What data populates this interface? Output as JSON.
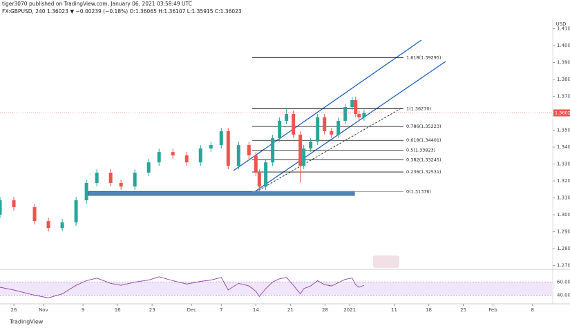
{
  "header": {
    "publisher": "tiger3070 published on TradingView.com, January 06, 2021 03:58:49 UTC",
    "symbol_line": "FX:GBPUSD, 240  1.36023 ▼ −0.00239 (−0.18%)  O:1.36065  H:1.36107  L:1.35915  C:1.36023"
  },
  "footer": {
    "brand": "TradingView"
  },
  "chart_data": {
    "type": "candlestick",
    "currency": "USD",
    "last_price_label": "1.36023",
    "last_price": 1.36023,
    "up_color": "#26a69a",
    "down_color": "#ef5350",
    "x": [
      -2.8,
      0,
      4.2,
      7,
      9.8,
      12.6,
      14.7,
      16.8,
      19.6,
      21.7,
      24.5,
      27.3,
      29.4,
      32.2,
      35,
      37.8,
      39.9,
      42,
      43.4,
      45.5,
      47.6,
      49,
      49.7,
      51,
      52.4,
      53.8,
      55.2,
      56.6,
      58,
      58.7,
      60.1,
      61.5,
      62.9,
      64.3,
      65.7,
      67.1,
      68.5,
      69.2,
      69.9,
      70.9
    ],
    "open": [
      1.3,
      1.3086,
      1.3045,
      1.2963,
      1.2922,
      1.2955,
      1.3086,
      1.3188,
      1.3249,
      1.3188,
      1.3167,
      1.3249,
      1.331,
      1.3371,
      1.3351,
      1.331,
      1.3392,
      1.3412,
      1.3494,
      1.329,
      1.3412,
      1.3351,
      1.3249,
      1.3167,
      1.331,
      1.3453,
      1.3555,
      1.3596,
      1.3474,
      1.329,
      1.3392,
      1.3433,
      1.3576,
      1.3494,
      1.3474,
      1.3555,
      1.3637,
      1.3678,
      1.3596,
      1.3576
    ],
    "high": [
      1.3106,
      1.3106,
      1.3065,
      1.2983,
      1.2975,
      1.3106,
      1.3208,
      1.3269,
      1.3269,
      1.3208,
      1.3269,
      1.333,
      1.3391,
      1.3391,
      1.3371,
      1.3412,
      1.3432,
      1.3514,
      1.3514,
      1.3432,
      1.3432,
      1.3371,
      1.3269,
      1.333,
      1.3473,
      1.3575,
      1.3627,
      1.3616,
      1.3494,
      1.3412,
      1.3453,
      1.3596,
      1.3596,
      1.3514,
      1.3575,
      1.3657,
      1.3698,
      1.3698,
      1.3616,
      1.3622
    ],
    "low": [
      1.298,
      1.3025,
      1.2943,
      1.2902,
      1.2902,
      1.2935,
      1.3066,
      1.3168,
      1.3168,
      1.3147,
      1.3147,
      1.3229,
      1.329,
      1.3331,
      1.329,
      1.329,
      1.3372,
      1.3392,
      1.327,
      1.327,
      1.3331,
      1.3229,
      1.3137,
      1.3147,
      1.329,
      1.3433,
      1.3535,
      1.3454,
      1.319,
      1.327,
      1.3372,
      1.3413,
      1.3474,
      1.3454,
      1.3454,
      1.3535,
      1.3617,
      1.3576,
      1.3556,
      1.3556
    ],
    "close": [
      1.3086,
      1.3045,
      1.2963,
      1.2922,
      1.2955,
      1.3086,
      1.3188,
      1.3249,
      1.3188,
      1.3167,
      1.3249,
      1.331,
      1.3371,
      1.3351,
      1.331,
      1.3392,
      1.3412,
      1.3494,
      1.329,
      1.3412,
      1.3351,
      1.3249,
      1.3167,
      1.331,
      1.3453,
      1.3555,
      1.3596,
      1.3474,
      1.329,
      1.3392,
      1.3433,
      1.3576,
      1.3494,
      1.3474,
      1.3555,
      1.3637,
      1.3678,
      1.3596,
      1.3576,
      1.3602
    ],
    "xlim": [
      -2.8,
      109.1
    ],
    "xticks": [
      {
        "value": 0,
        "label": "26"
      },
      {
        "value": 6,
        "label": "Nov"
      },
      {
        "value": 14,
        "label": "9"
      },
      {
        "value": 21,
        "label": "16"
      },
      {
        "value": 28,
        "label": "23"
      },
      {
        "value": 36,
        "label": "Dec"
      },
      {
        "value": 42,
        "label": "7"
      },
      {
        "value": 49,
        "label": "14"
      },
      {
        "value": 56,
        "label": "21"
      },
      {
        "value": 63,
        "label": "28"
      },
      {
        "value": 68,
        "label": "2021"
      },
      {
        "value": 77,
        "label": "11"
      },
      {
        "value": 84,
        "label": "18"
      },
      {
        "value": 91,
        "label": "25"
      },
      {
        "value": 97,
        "label": "Feb"
      },
      {
        "value": 105,
        "label": "8"
      }
    ],
    "ylim": [
      1.2678,
      1.4147
    ],
    "yticks": [
      {
        "value": 1.41,
        "label": "1.41000"
      },
      {
        "value": 1.4,
        "label": "1.40000"
      },
      {
        "value": 1.39,
        "label": "1.39000"
      },
      {
        "value": 1.38,
        "label": "1.38000"
      },
      {
        "value": 1.37,
        "label": "1.37000"
      },
      {
        "value": 1.35,
        "label": "1.35000"
      },
      {
        "value": 1.34,
        "label": "1.34000"
      },
      {
        "value": 1.33,
        "label": "1.33000"
      },
      {
        "value": 1.32,
        "label": "1.32000"
      },
      {
        "value": 1.31,
        "label": "1.31000"
      },
      {
        "value": 1.3,
        "label": "1.30000"
      },
      {
        "value": 1.29,
        "label": "1.29000"
      },
      {
        "value": 1.28,
        "label": "1.28000"
      },
      {
        "value": 1.27,
        "label": "1.27000"
      }
    ],
    "fib_levels": [
      {
        "label": "1.618(1.39295)",
        "price": 1.39295
      },
      {
        "label": "1(1.36270)",
        "price": 1.3627
      },
      {
        "label": "0.786(1.35223)",
        "price": 1.35223
      },
      {
        "label": "0.618(1.34401)",
        "price": 1.34401
      },
      {
        "label": "0.5(1.33823)",
        "price": 1.33823
      },
      {
        "label": "0.382(1.33245)",
        "price": 1.33245
      },
      {
        "label": "0.236(1.32531)",
        "price": 1.32531
      },
      {
        "label": "0(1.31376)",
        "price": 1.31376
      }
    ],
    "support_zone": [
      1.3115,
      1.3138
    ],
    "rsi": {
      "values": [
        52,
        48,
        40,
        36,
        42,
        55,
        62,
        66,
        58,
        55,
        60,
        63,
        68,
        62,
        57,
        61,
        63,
        67,
        48,
        58,
        54,
        46,
        38,
        50,
        60,
        65,
        67,
        55,
        42,
        50,
        54,
        62,
        56,
        54,
        59,
        64,
        66,
        56,
        52,
        55
      ],
      "ylim": [
        30,
        72
      ],
      "yticks": [
        {
          "value": 60,
          "label": "60.00"
        },
        {
          "value": 40,
          "label": "40.00"
        }
      ]
    }
  }
}
